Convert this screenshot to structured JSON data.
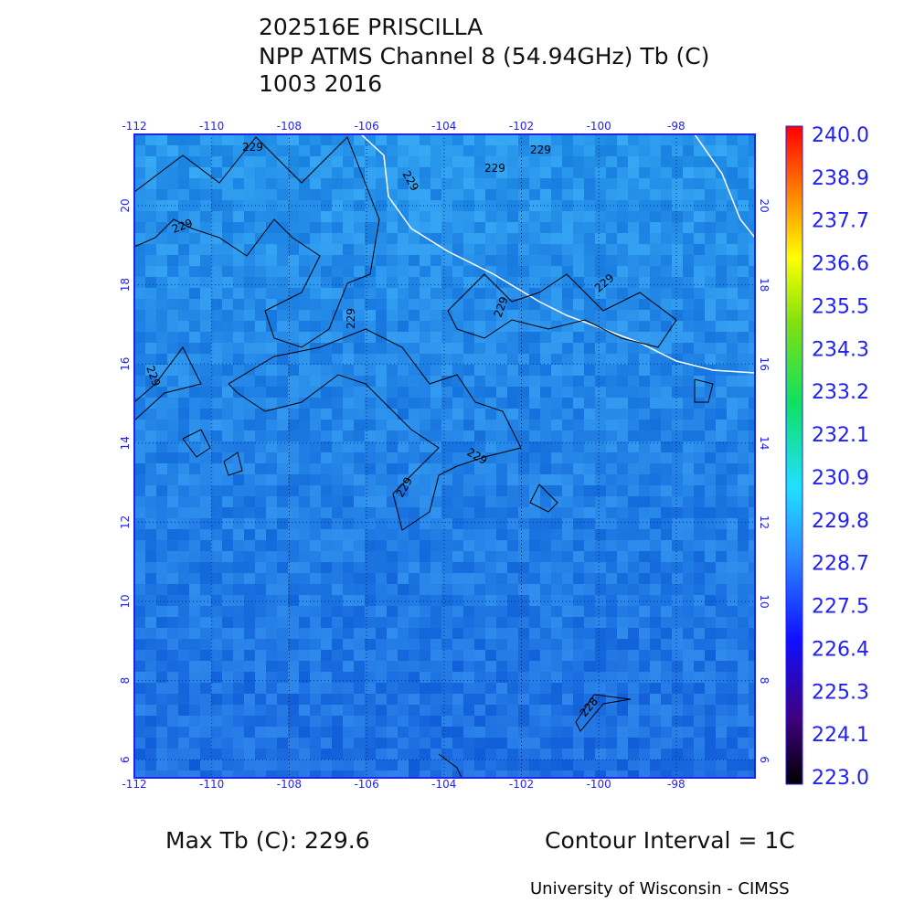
{
  "header": {
    "title": "202516E PRISCILLA",
    "subtitle": "NPP ATMS Channel 8 (54.94GHz) Tb (C)",
    "date": "1003 2016"
  },
  "map": {
    "lon_labels": [
      "-112",
      "-110",
      "-108",
      "-106",
      "-104",
      "-102",
      "-100",
      "-98"
    ],
    "lat_labels": [
      "20",
      "18",
      "16",
      "14",
      "12",
      "10",
      "8",
      "6"
    ],
    "contour_labels": [
      "229",
      "229",
      "229",
      "229",
      "229",
      "229",
      "229",
      "229",
      "229",
      "229",
      "229",
      "228"
    ]
  },
  "colorbar": {
    "labels": [
      "240.0",
      "238.9",
      "237.7",
      "236.6",
      "235.5",
      "234.3",
      "233.2",
      "232.1",
      "230.9",
      "229.8",
      "228.7",
      "227.5",
      "226.4",
      "225.3",
      "224.1",
      "223.0"
    ]
  },
  "footer": {
    "max": "Max Tb (C): 229.6",
    "interval": "Contour Interval = 1C",
    "credit": "University of Wisconsin - CIMSS"
  }
}
